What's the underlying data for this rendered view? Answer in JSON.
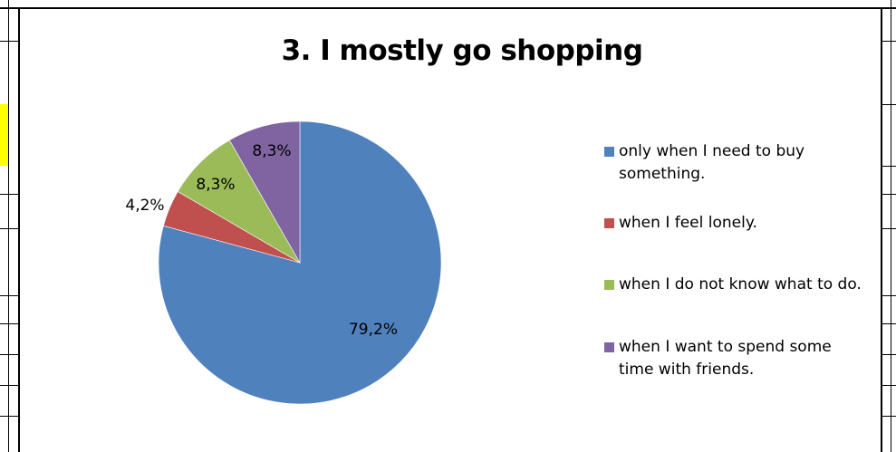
{
  "chart_data": {
    "type": "pie",
    "title": "3. I mostly go shopping",
    "slices": [
      {
        "name": "only when I need to buy something.",
        "value": 79.2,
        "label": "79,2%",
        "color": "#4f81bd"
      },
      {
        "name": "when I feel lonely.",
        "value": 4.2,
        "label": "4,2%",
        "color": "#c0504d"
      },
      {
        "name": "when I do not know what to do.",
        "value": 8.3,
        "label": "8,3%",
        "color": "#9bbb59"
      },
      {
        "name": "when I want to spend some time with friends.",
        "value": 8.3,
        "label": "8,3%",
        "color": "#8064a2"
      }
    ],
    "legend_position": "right"
  }
}
